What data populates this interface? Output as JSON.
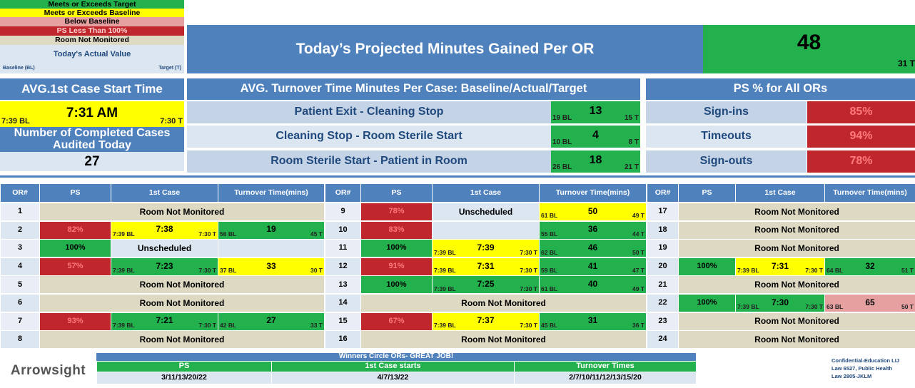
{
  "legend": {
    "items": [
      {
        "label": "Meets or Exceeds Target",
        "color": "#22b14c"
      },
      {
        "label": "Meets or Exceeds Baseline",
        "color": "#ffff00"
      },
      {
        "label": "Below Baseline",
        "color": "#e6a0a0"
      },
      {
        "label": "PS Less Than 100%",
        "color": "#c0272d"
      },
      {
        "label": "Room Not Monitored",
        "color": "#ddd9c3"
      }
    ],
    "actual": "Today's Actual Value",
    "baseline": "Baseline (BL)",
    "target": "Target (T)"
  },
  "banner": {
    "title": "Today’s Projected Minutes Gained Per OR",
    "value": 48,
    "target": "31 T"
  },
  "first_case": {
    "title": "AVG.1st Case Start Time",
    "value": "7:31 AM",
    "bl": "7:39 BL",
    "t": "7:30 T",
    "cases_title": "Number of Completed Cases Audited Today",
    "cases": 27
  },
  "turnover": {
    "title": "AVG. Turnover Time Minutes Per Case: Baseline/Actual/Target",
    "rows": [
      {
        "label": "Patient Exit - Cleaning Stop",
        "value": 13,
        "bl": "19 BL",
        "t": "15 T"
      },
      {
        "label": "Cleaning Stop - Room Sterile Start",
        "value": 4,
        "bl": "10 BL",
        "t": "8 T"
      },
      {
        "label": "Room Sterile Start - Patient in Room",
        "value": 18,
        "bl": "26 BL",
        "t": "21 T"
      }
    ]
  },
  "ps_all": {
    "title": "PS % for All ORs",
    "rows": [
      {
        "label": "Sign-ins",
        "value": "85%"
      },
      {
        "label": "Timeouts",
        "value": "94%"
      },
      {
        "label": "Sign-outs",
        "value": "78%"
      }
    ]
  },
  "or_table": {
    "headers": [
      "OR#",
      "PS",
      "1st Case",
      "Turnover Time(mins)"
    ],
    "groups": [
      {
        "rows": [
          {
            "or": 1,
            "status": "Room Not Monitored"
          },
          {
            "or": 2,
            "ps": {
              "text": "82%",
              "color": "#c0272d"
            },
            "first_case": {
              "time": "7:38",
              "bl": "7:39 BL",
              "t": "7:30 T",
              "color": "#ffff00"
            },
            "turnover": {
              "value": 19,
              "bl": "56 BL",
              "t": "45 T",
              "color": "#22b14c"
            }
          },
          {
            "or": 3,
            "ps": {
              "text": "100%",
              "color": "#22b14c"
            },
            "first_case": {
              "text": "Unscheduled"
            }
          },
          {
            "or": 4,
            "ps": {
              "text": "57%",
              "color": "#c0272d"
            },
            "first_case": {
              "time": "7:23",
              "bl": "7:39 BL",
              "t": "7:30 T",
              "color": "#22b14c"
            },
            "turnover": {
              "value": 33,
              "bl": "37 BL",
              "t": "30 T",
              "color": "#ffff00"
            }
          },
          {
            "or": 5,
            "status": "Room Not Monitored"
          },
          {
            "or": 6,
            "status": "Room Not Monitored"
          },
          {
            "or": 7,
            "ps": {
              "text": "93%",
              "color": "#c0272d"
            },
            "first_case": {
              "time": "7:21",
              "bl": "7:39 BL",
              "t": "7:30 T",
              "color": "#22b14c"
            },
            "turnover": {
              "value": 27,
              "bl": "42 BL",
              "t": "33 T",
              "color": "#22b14c"
            }
          },
          {
            "or": 8,
            "status": "Room Not Monitored"
          }
        ]
      },
      {
        "rows": [
          {
            "or": 9,
            "ps": {
              "text": "78%",
              "color": "#c0272d"
            },
            "first_case": {
              "text": "Unscheduled"
            },
            "turnover": {
              "value": 50,
              "bl": "61 BL",
              "t": "49 T",
              "color": "#ffff00"
            }
          },
          {
            "or": 10,
            "ps": {
              "text": "83%",
              "color": "#c0272d"
            },
            "turnover": {
              "value": 36,
              "bl": "55 BL",
              "t": "44 T",
              "color": "#22b14c"
            }
          },
          {
            "or": 11,
            "ps": {
              "text": "100%",
              "color": "#22b14c"
            },
            "first_case": {
              "time": "7:39",
              "bl": "7:39 BL",
              "t": "7:30 T",
              "color": "#ffff00"
            },
            "turnover": {
              "value": 46,
              "bl": "62 BL",
              "t": "50 T",
              "color": "#22b14c"
            }
          },
          {
            "or": 12,
            "ps": {
              "text": "91%",
              "color": "#c0272d"
            },
            "first_case": {
              "time": "7:31",
              "bl": "7:39 BL",
              "t": "7:30 T",
              "color": "#ffff00"
            },
            "turnover": {
              "value": 41,
              "bl": "59 BL",
              "t": "47 T",
              "color": "#22b14c"
            }
          },
          {
            "or": 13,
            "ps": {
              "text": "100%",
              "color": "#22b14c"
            },
            "first_case": {
              "time": "7:25",
              "bl": "7:39 BL",
              "t": "7:30 T",
              "color": "#22b14c"
            },
            "turnover": {
              "value": 40,
              "bl": "61 BL",
              "t": "49 T",
              "color": "#22b14c"
            }
          },
          {
            "or": 14,
            "status": "Room Not Monitored"
          },
          {
            "or": 15,
            "ps": {
              "text": "67%",
              "color": "#c0272d"
            },
            "first_case": {
              "time": "7:37",
              "bl": "7:39 BL",
              "t": "7:30 T",
              "color": "#ffff00"
            },
            "turnover": {
              "value": 31,
              "bl": "45 BL",
              "t": "36 T",
              "color": "#22b14c"
            }
          },
          {
            "or": 16,
            "status": "Room Not Monitored"
          }
        ]
      },
      {
        "rows": [
          {
            "or": 17,
            "status": "Room Not Monitored"
          },
          {
            "or": 18,
            "status": "Room Not Monitored"
          },
          {
            "or": 19,
            "status": "Room Not Monitored"
          },
          {
            "or": 20,
            "ps": {
              "text": "100%",
              "color": "#22b14c"
            },
            "first_case": {
              "time": "7:31",
              "bl": "7:39 BL",
              "t": "7:30 T",
              "color": "#ffff00"
            },
            "turnover": {
              "value": 32,
              "bl": "64 BL",
              "t": "51 T",
              "color": "#22b14c"
            }
          },
          {
            "or": 21,
            "status": "Room Not Monitored"
          },
          {
            "or": 22,
            "ps": {
              "text": "100%",
              "color": "#22b14c"
            },
            "first_case": {
              "time": "7:30",
              "bl": "7:39 BL",
              "t": "7:30 T",
              "color": "#22b14c"
            },
            "turnover": {
              "value": 65,
              "bl": "63 BL",
              "t": "50 T",
              "color": "#e6a0a0"
            }
          },
          {
            "or": 23,
            "status": "Room Not Monitored"
          },
          {
            "or": 24,
            "status": "Room Not Monitored"
          }
        ]
      }
    ]
  },
  "footer": {
    "logo": "Arrowsight",
    "winners": {
      "title": "Winners Circle ORs- GREAT JOB!",
      "headers": [
        "PS",
        "1st Case starts",
        "Turnover Times"
      ],
      "values": [
        "3/11/13/20/22",
        "4/7/13/22",
        "2/7/10/11/12/13/15/20"
      ]
    },
    "note": [
      "Confidential-Education LIJ",
      "Law 6527, Public Health",
      "Law 2805-JKLM"
    ]
  }
}
